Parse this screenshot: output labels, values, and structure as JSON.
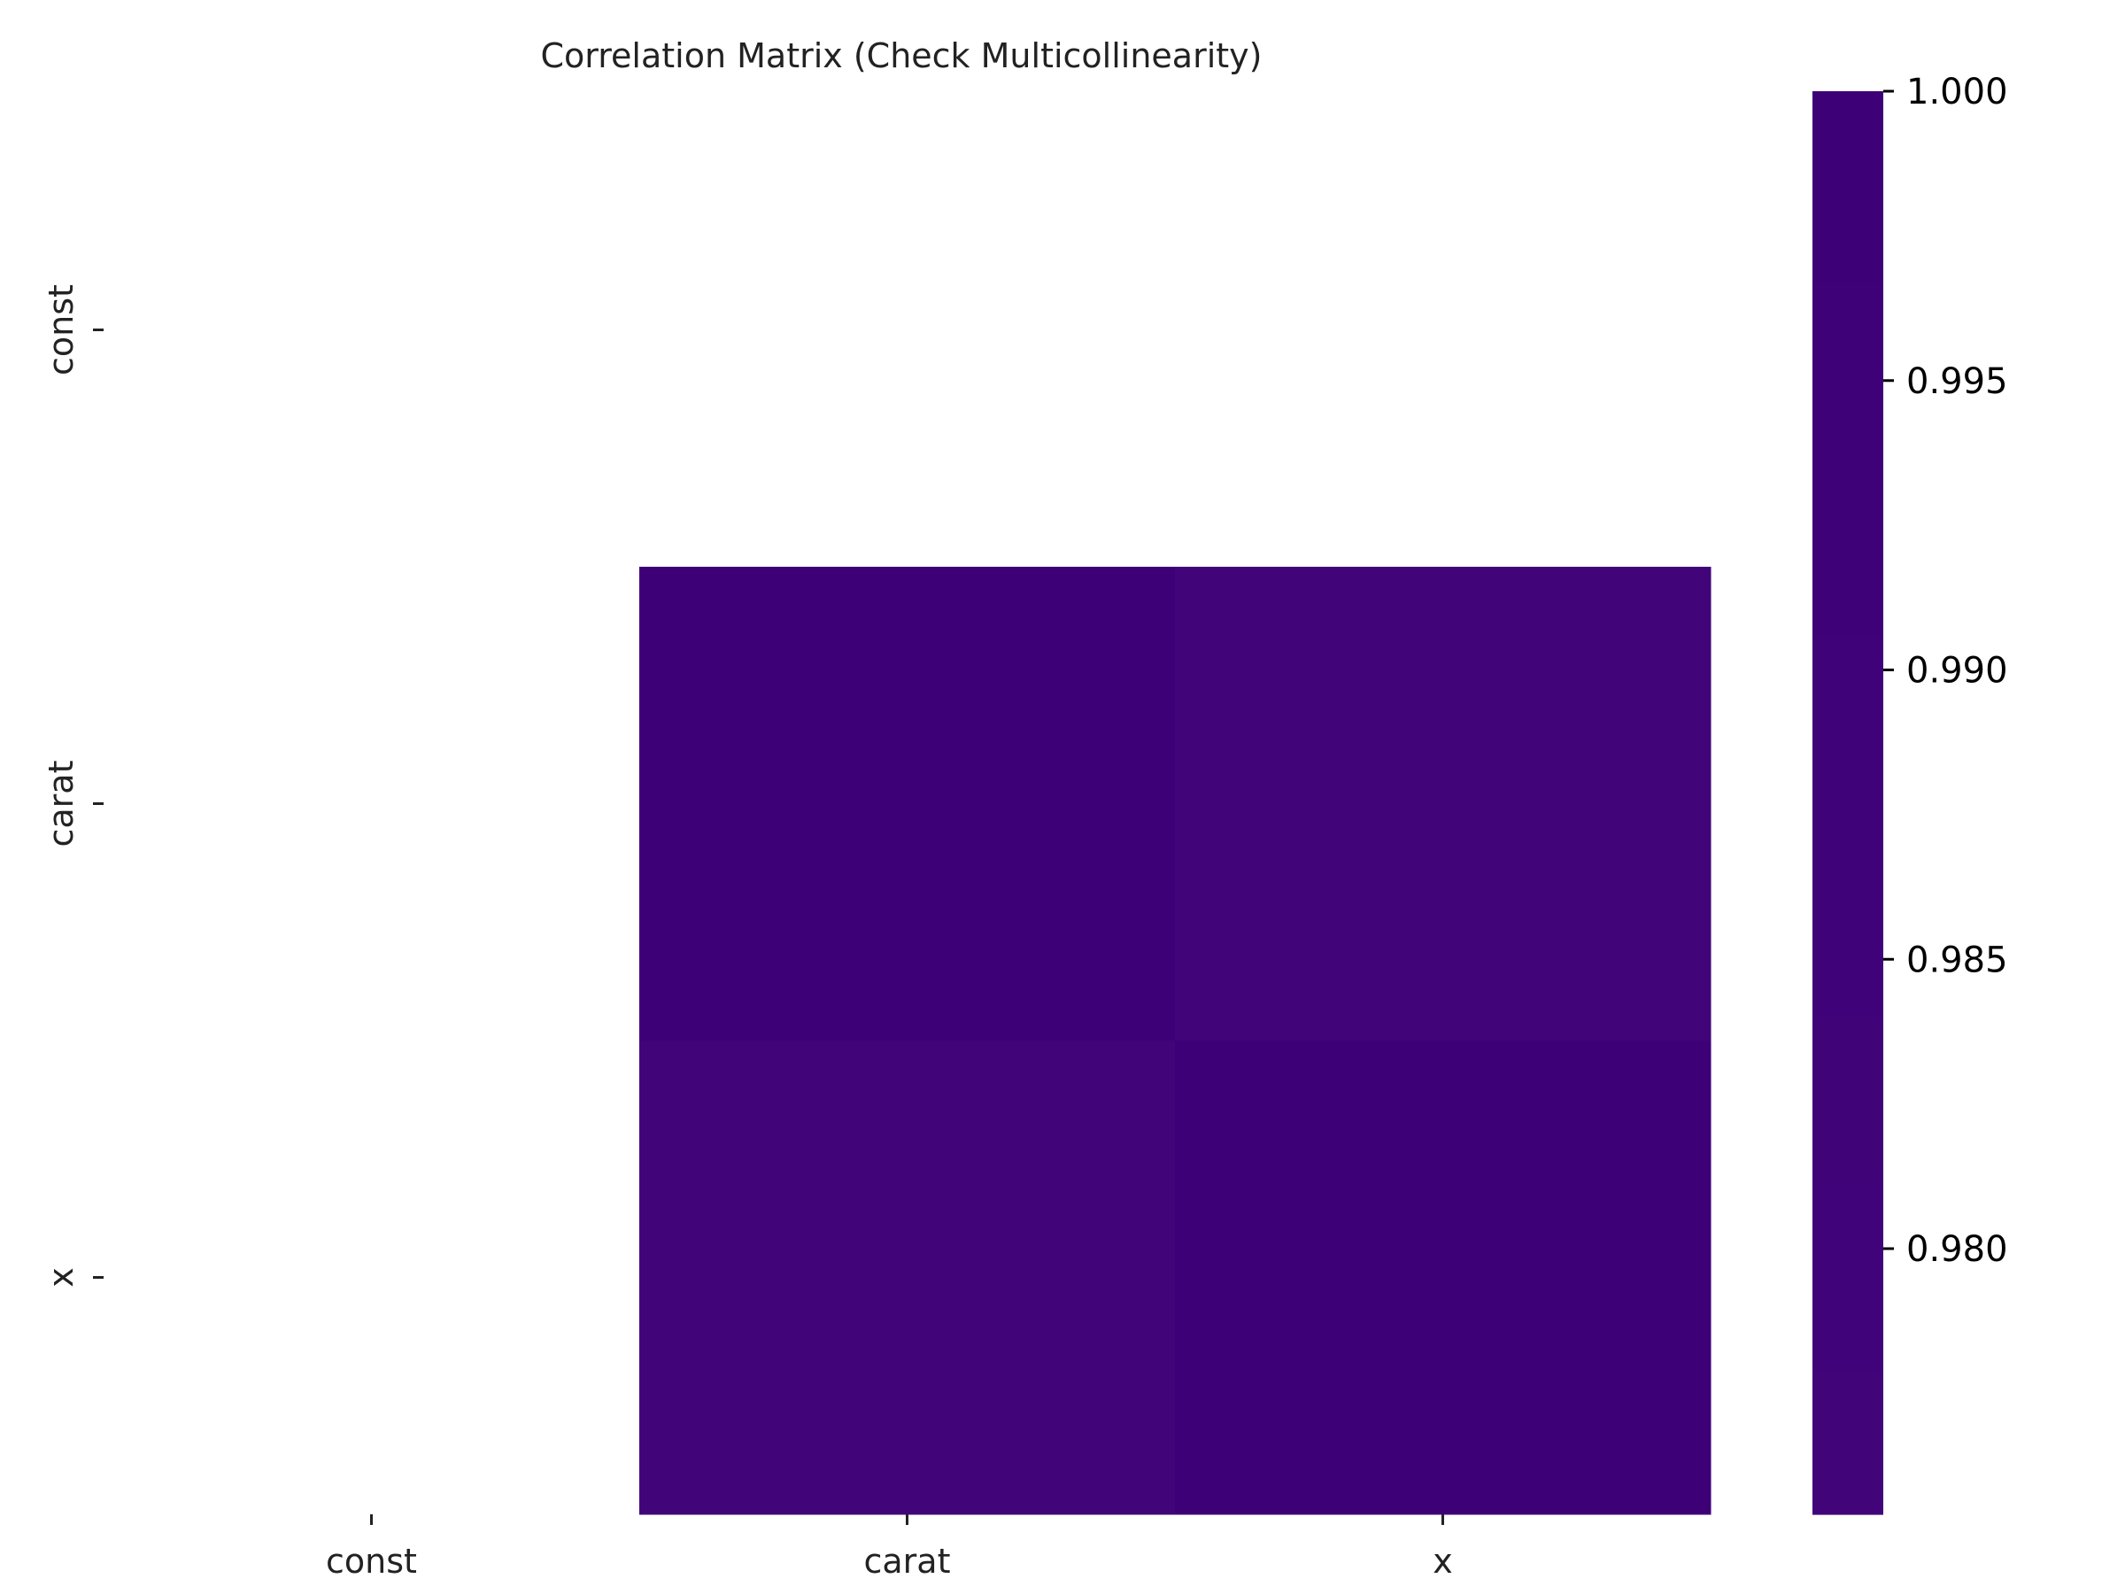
{
  "chart_data": {
    "type": "heatmap",
    "title": "Correlation Matrix (Check Multicollinearity)",
    "xlabel": "",
    "ylabel": "",
    "x_categories": [
      "const",
      "carat",
      "x"
    ],
    "y_categories": [
      "const",
      "carat",
      "x"
    ],
    "values": [
      [
        null,
        null,
        null
      ],
      [
        null,
        1.0,
        0.975
      ],
      [
        null,
        0.975,
        1.0
      ]
    ],
    "colormap": "viridis",
    "color_range": [
      0.975,
      1.0
    ],
    "colorbar": {
      "ticks": [
        1.0,
        0.995,
        0.99,
        0.985,
        0.98
      ],
      "tick_labels": [
        "1.000",
        "0.995",
        "0.990",
        "0.985",
        "0.980"
      ],
      "placement": "right"
    },
    "grid": false,
    "colors": {
      "high": "#3e0077",
      "low": "#420479"
    }
  }
}
